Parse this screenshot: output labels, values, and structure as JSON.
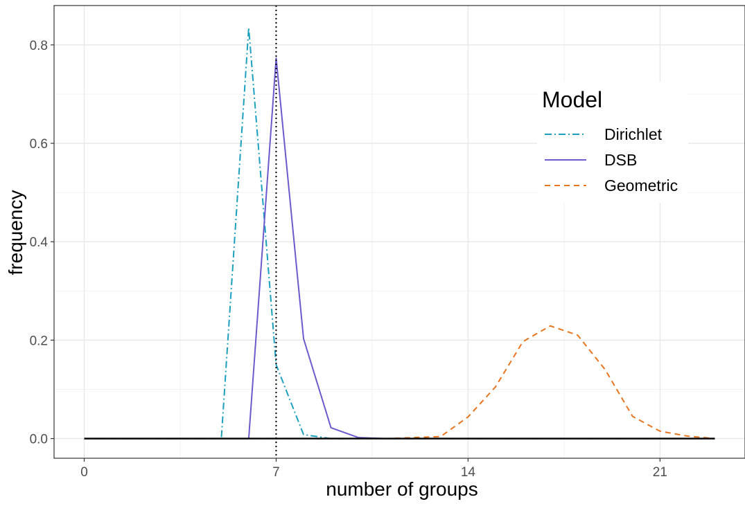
{
  "chart_data": {
    "type": "line",
    "xlabel": "number of groups",
    "ylabel": "frequency",
    "xlim": [
      -1.1,
      24.1
    ],
    "ylim": [
      -0.04,
      0.88
    ],
    "x_ticks": [
      0,
      7,
      14,
      21
    ],
    "x_minor_ticks": [
      3.5,
      10.5,
      17.5
    ],
    "y_ticks": [
      0.0,
      0.2,
      0.4,
      0.6,
      0.8
    ],
    "y_minor_ticks": [
      0.1,
      0.3,
      0.5,
      0.7
    ],
    "x_tick_labels": [
      "0",
      "7",
      "14",
      "21"
    ],
    "y_tick_labels": [
      "0.0",
      "0.2",
      "0.4",
      "0.6",
      "0.8"
    ],
    "grid": true,
    "reference_line": {
      "x": 7,
      "style": "dotted",
      "color": "#000000"
    },
    "baseline": {
      "y": 0,
      "x_range": [
        0,
        23
      ],
      "color": "#000000"
    },
    "legend": {
      "title": "Model",
      "position": "top-right"
    },
    "series": [
      {
        "name": "Dirichlet",
        "color": "#1a9fbf",
        "dash": "dotdash",
        "x": [
          0,
          1,
          2,
          3,
          4,
          5,
          6,
          7,
          8,
          9,
          10,
          11,
          12,
          13,
          14,
          15,
          16,
          17,
          18,
          19,
          20,
          21,
          22,
          23
        ],
        "y": [
          0,
          0,
          0,
          0,
          0,
          0.0,
          0.835,
          0.15,
          0.008,
          0,
          0,
          0,
          0,
          0,
          0,
          0,
          0,
          0,
          0,
          0,
          0,
          0,
          0,
          0
        ]
      },
      {
        "name": "DSB",
        "color": "#6a5acd",
        "dash": "solid",
        "x": [
          0,
          1,
          2,
          3,
          4,
          5,
          6,
          7,
          8,
          9,
          10,
          11,
          12,
          13,
          14,
          15,
          16,
          17,
          18,
          19,
          20,
          21,
          22,
          23
        ],
        "y": [
          0,
          0,
          0,
          0,
          0,
          0,
          0.0,
          0.773,
          0.203,
          0.022,
          0.002,
          0,
          0,
          0,
          0,
          0,
          0,
          0,
          0,
          0,
          0,
          0,
          0,
          0
        ]
      },
      {
        "name": "Geometric",
        "color": "#e8741e",
        "dash": "dashed",
        "x": [
          0,
          1,
          2,
          3,
          4,
          5,
          6,
          7,
          8,
          9,
          10,
          11,
          12,
          13,
          14,
          15,
          16,
          17,
          18,
          19,
          20,
          21,
          22,
          23
        ],
        "y": [
          0,
          0,
          0,
          0,
          0,
          0,
          0,
          0,
          0,
          0,
          0,
          0,
          0.002,
          0.004,
          0.044,
          0.105,
          0.197,
          0.229,
          0.21,
          0.14,
          0.045,
          0.015,
          0.005,
          0.0
        ]
      }
    ]
  }
}
